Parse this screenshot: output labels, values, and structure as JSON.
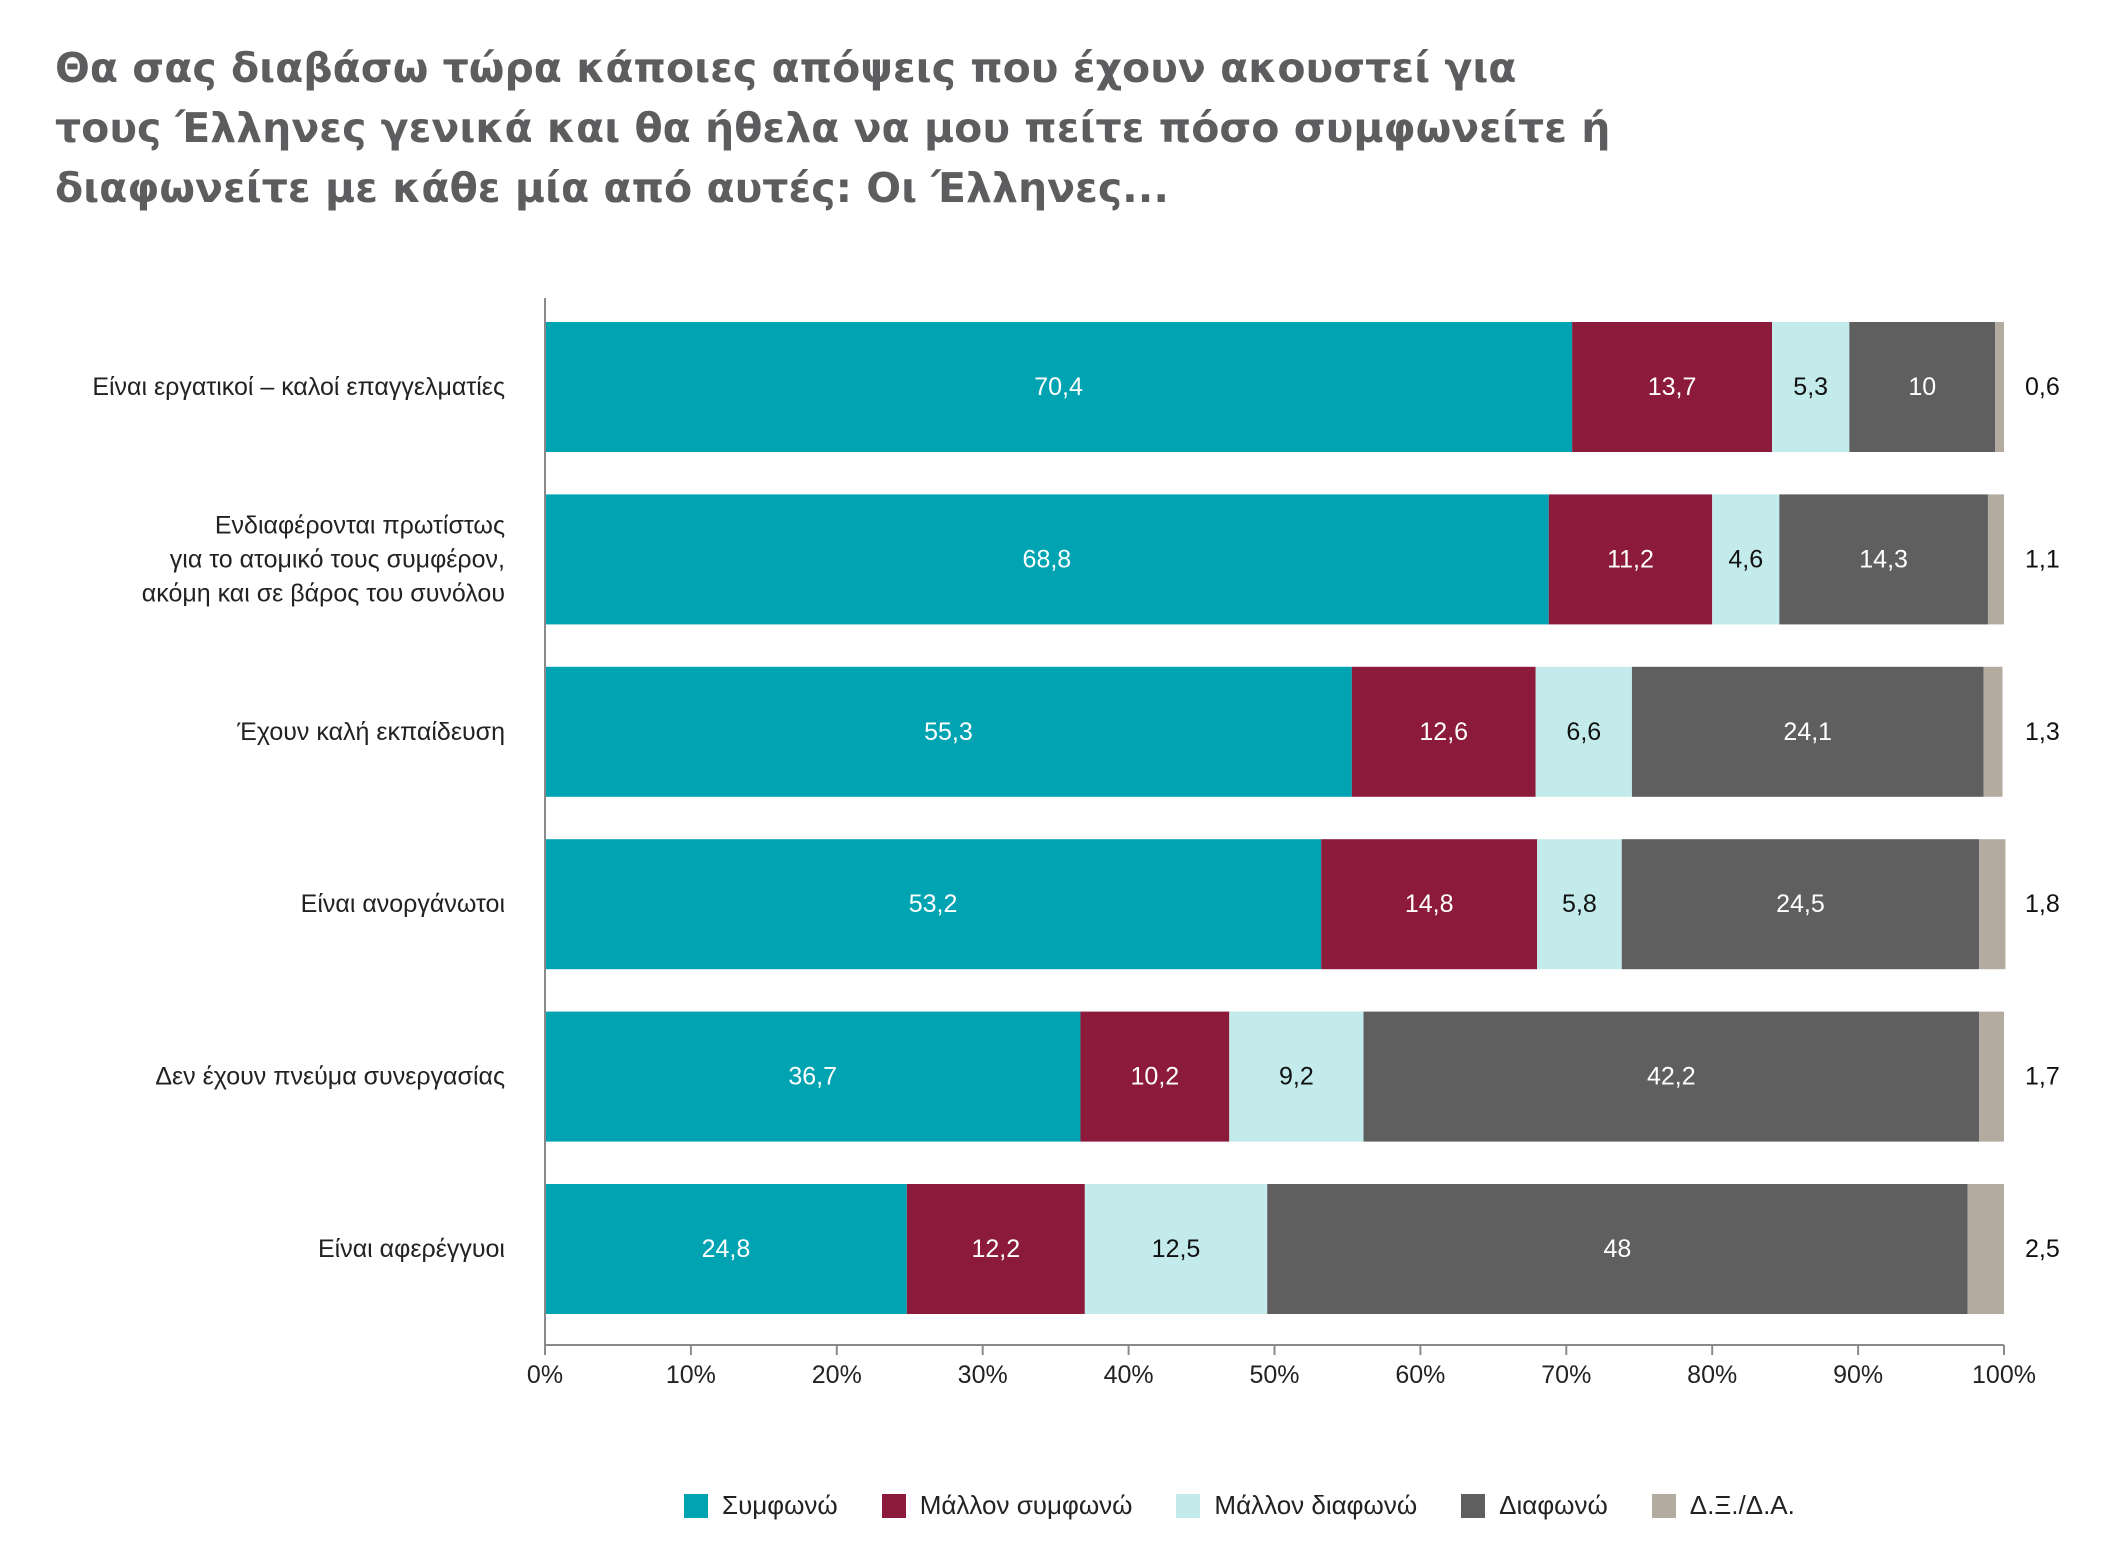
{
  "title_lines": [
    "Θα σας διαβάσω τώρα κάποιες απόψεις που έχουν ακουστεί για",
    "τους Έλληνες γενικά και θα ήθελα να μου πείτε πόσο συμφωνείτε ή",
    "διαφωνείτε με κάθε μία από αυτές: Οι Έλληνες..."
  ],
  "chart_data": {
    "type": "bar",
    "orientation": "horizontal",
    "stacked": true,
    "categories": [
      [
        "Είναι εργατικοί – καλοί επαγγελματίες"
      ],
      [
        "Ενδιαφέρονται πρωτίστως",
        "για το ατομικό τους συμφέρον,",
        "ακόμη και σε βάρος του συνόλου"
      ],
      [
        "Έχουν καλή εκπαίδευση"
      ],
      [
        "Είναι ανοργάνωτοι"
      ],
      [
        "Δεν έχουν πνεύμα συνεργασίας"
      ],
      [
        "Είναι αφερέγγυοι"
      ]
    ],
    "series": [
      {
        "name": "Συμφωνώ",
        "color": "#00a3b1",
        "label_color": "#ffffff",
        "values": [
          70.4,
          68.8,
          55.3,
          53.2,
          36.7,
          24.8
        ],
        "labels": [
          "70,4",
          "68,8",
          "55,3",
          "53,2",
          "36,7",
          "24,8"
        ]
      },
      {
        "name": "Μάλλον συμφωνώ",
        "color": "#8c1a3a",
        "label_color": "#ffffff",
        "values": [
          13.7,
          11.2,
          12.6,
          14.8,
          10.2,
          12.2
        ],
        "labels": [
          "13,7",
          "11,2",
          "12,6",
          "14,8",
          "10,2",
          "12,2"
        ]
      },
      {
        "name": "Μάλλον διαφωνώ",
        "color": "#c4ebec",
        "label_color": "#111111",
        "values": [
          5.3,
          4.6,
          6.6,
          5.8,
          9.2,
          12.5
        ],
        "labels": [
          "5,3",
          "4,6",
          "6,6",
          "5,8",
          "9,2",
          "12,5"
        ]
      },
      {
        "name": "Διαφωνώ",
        "color": "#5f5f5f",
        "label_color": "#ffffff",
        "values": [
          10,
          14.3,
          24.1,
          24.5,
          42.2,
          48
        ],
        "labels": [
          "10",
          "14,3",
          "24,1",
          "24,5",
          "42,2",
          "48"
        ]
      },
      {
        "name": "Δ.Ξ./Δ.Α.",
        "color": "#b3aba0",
        "label_color": "#111111",
        "label_position": "outside",
        "values": [
          0.6,
          1.1,
          1.3,
          1.8,
          1.7,
          2.5
        ],
        "labels": [
          "0,6",
          "1,1",
          "1,3",
          "1,8",
          "1,7",
          "2,5"
        ]
      }
    ],
    "x_axis": {
      "range": [
        0,
        100
      ],
      "ticks": [
        0,
        10,
        20,
        30,
        40,
        50,
        60,
        70,
        80,
        90,
        100
      ],
      "tick_labels": [
        "0%",
        "10%",
        "20%",
        "30%",
        "40%",
        "50%",
        "60%",
        "70%",
        "80%",
        "90%",
        "100%"
      ]
    },
    "grid": false,
    "legend_position": "bottom"
  }
}
